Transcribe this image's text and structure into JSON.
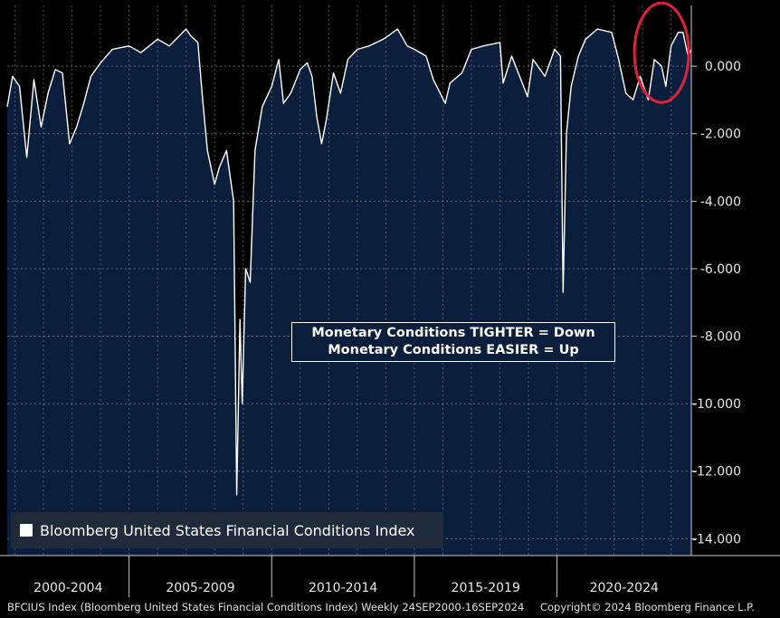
{
  "chart_data": {
    "type": "area",
    "title": "",
    "xlabel": "",
    "ylabel": "",
    "x_range": [
      "2000-09-24",
      "2024-09-16"
    ],
    "ylim": [
      -14.5,
      1.8
    ],
    "yticks": [
      0,
      -2,
      -4,
      -6,
      -8,
      -10,
      -12,
      -14
    ],
    "ytick_labels": [
      "0.000",
      "-2.000",
      "-4.000",
      "-6.000",
      "-8.000",
      "-10.000",
      "-12.000",
      "-14.000"
    ],
    "x_period_labels": [
      "2000-2004",
      "2005-2009",
      "2010-2014",
      "2015-2019",
      "2020-2024"
    ],
    "grid": true,
    "legend_position": "bottom-left",
    "series": [
      {
        "name": "Bloomberg United States Financial Conditions Index",
        "color": "#ffffff",
        "fill": "#0b1f3d",
        "points": [
          [
            "2000-09-24",
            -1.2
          ],
          [
            "2000-12-01",
            -0.3
          ],
          [
            "2001-03-01",
            -0.6
          ],
          [
            "2001-06-01",
            -2.7
          ],
          [
            "2001-09-01",
            -0.4
          ],
          [
            "2001-12-01",
            -1.8
          ],
          [
            "2002-03-01",
            -0.8
          ],
          [
            "2002-06-01",
            -0.1
          ],
          [
            "2002-09-01",
            -0.2
          ],
          [
            "2002-12-01",
            -2.3
          ],
          [
            "2003-03-01",
            -1.8
          ],
          [
            "2003-06-01",
            -1.1
          ],
          [
            "2003-09-01",
            -0.3
          ],
          [
            "2004-01-01",
            0.1
          ],
          [
            "2004-06-01",
            0.5
          ],
          [
            "2005-01-01",
            0.6
          ],
          [
            "2005-06-01",
            0.4
          ],
          [
            "2006-01-01",
            0.8
          ],
          [
            "2006-06-01",
            0.6
          ],
          [
            "2007-01-01",
            1.1
          ],
          [
            "2007-03-01",
            0.9
          ],
          [
            "2007-06-01",
            0.7
          ],
          [
            "2007-08-01",
            -1.0
          ],
          [
            "2007-10-01",
            -2.5
          ],
          [
            "2008-01-01",
            -3.5
          ],
          [
            "2008-03-01",
            -3.0
          ],
          [
            "2008-06-01",
            -2.5
          ],
          [
            "2008-09-01",
            -4.0
          ],
          [
            "2008-10-10",
            -12.7
          ],
          [
            "2008-11-20",
            -7.5
          ],
          [
            "2008-12-20",
            -10.0
          ],
          [
            "2009-02-01",
            -6.0
          ],
          [
            "2009-04-01",
            -6.4
          ],
          [
            "2009-06-01",
            -2.5
          ],
          [
            "2009-09-01",
            -1.2
          ],
          [
            "2010-01-01",
            -0.6
          ],
          [
            "2010-04-01",
            0.2
          ],
          [
            "2010-06-01",
            -1.1
          ],
          [
            "2010-09-01",
            -0.8
          ],
          [
            "2011-01-01",
            -0.1
          ],
          [
            "2011-04-01",
            0.1
          ],
          [
            "2011-06-01",
            -0.3
          ],
          [
            "2011-08-01",
            -1.5
          ],
          [
            "2011-10-01",
            -2.3
          ],
          [
            "2011-12-01",
            -1.6
          ],
          [
            "2012-03-01",
            -0.2
          ],
          [
            "2012-06-01",
            -0.8
          ],
          [
            "2012-09-01",
            0.2
          ],
          [
            "2013-01-01",
            0.5
          ],
          [
            "2013-06-01",
            0.6
          ],
          [
            "2013-12-01",
            0.8
          ],
          [
            "2014-06-01",
            1.1
          ],
          [
            "2014-10-01",
            0.6
          ],
          [
            "2015-01-01",
            0.5
          ],
          [
            "2015-06-01",
            0.3
          ],
          [
            "2015-09-01",
            -0.4
          ],
          [
            "2016-02-01",
            -1.1
          ],
          [
            "2016-04-01",
            -0.5
          ],
          [
            "2016-09-01",
            -0.2
          ],
          [
            "2017-01-01",
            0.5
          ],
          [
            "2017-06-01",
            0.6
          ],
          [
            "2018-01-01",
            0.7
          ],
          [
            "2018-02-10",
            -0.5
          ],
          [
            "2018-06-01",
            0.3
          ],
          [
            "2018-12-20",
            -0.9
          ],
          [
            "2019-03-01",
            0.2
          ],
          [
            "2019-08-01",
            -0.3
          ],
          [
            "2019-12-01",
            0.5
          ],
          [
            "2020-02-15",
            0.3
          ],
          [
            "2020-03-20",
            -6.7
          ],
          [
            "2020-05-01",
            -2.0
          ],
          [
            "2020-07-01",
            -0.6
          ],
          [
            "2020-10-01",
            0.3
          ],
          [
            "2021-01-01",
            0.8
          ],
          [
            "2021-06-01",
            1.1
          ],
          [
            "2021-12-01",
            1.0
          ],
          [
            "2022-03-01",
            0.2
          ],
          [
            "2022-06-01",
            -0.8
          ],
          [
            "2022-09-01",
            -1.0
          ],
          [
            "2022-12-01",
            -0.3
          ],
          [
            "2023-03-15",
            -1.0
          ],
          [
            "2023-06-01",
            0.2
          ],
          [
            "2023-09-01",
            0.0
          ],
          [
            "2023-10-25",
            -0.6
          ],
          [
            "2024-01-01",
            0.6
          ],
          [
            "2024-04-01",
            1.0
          ],
          [
            "2024-06-01",
            1.0
          ],
          [
            "2024-08-05",
            0.3
          ],
          [
            "2024-09-16",
            0.5
          ]
        ]
      }
    ],
    "annotations": [
      {
        "type": "ellipse",
        "color": "#e0213a",
        "center": [
          "2023-09-01",
          0.4
        ],
        "note": ""
      }
    ]
  },
  "annotation_box": {
    "line1": "Monetary Conditions TIGHTER = Down",
    "line2": "Monetary Conditions EASIER = Up"
  },
  "legend": {
    "label": "Bloomberg United States Financial Conditions Index",
    "swatch_color": "#ffffff"
  },
  "footer": {
    "source": "BFCIUS Index (Bloomberg United States Financial Conditions Index)  Weekly 24SEP2000-16SEP2024",
    "copyright": "Copyright© 2024 Bloomberg Finance L.P."
  },
  "colors": {
    "background": "#000000",
    "plot_fill": "#0b1f3d",
    "line": "#ffffff",
    "highlight": "#e0213a"
  }
}
